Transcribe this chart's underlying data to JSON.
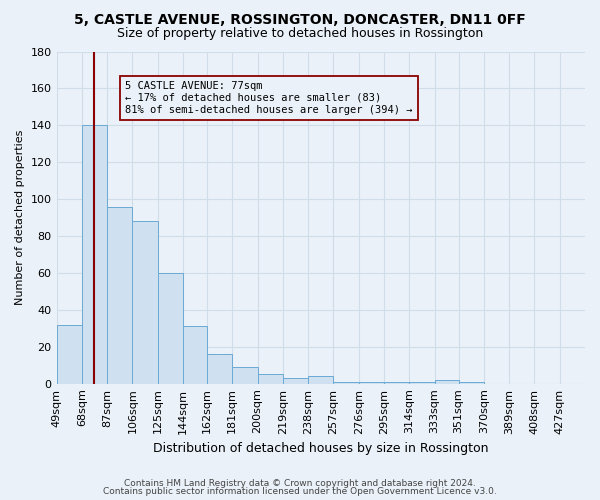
{
  "title": "5, CASTLE AVENUE, ROSSINGTON, DONCASTER, DN11 0FF",
  "subtitle": "Size of property relative to detached houses in Rossington",
  "xlabel": "Distribution of detached houses by size in Rossington",
  "ylabel": "Number of detached properties",
  "bar_values": [
    32,
    140,
    96,
    88,
    60,
    31,
    16,
    9,
    5,
    3,
    4,
    1,
    1,
    1,
    1,
    2,
    1,
    0,
    0,
    0,
    0
  ],
  "categories": [
    "49sqm",
    "68sqm",
    "87sqm",
    "106sqm",
    "125sqm",
    "144sqm",
    "162sqm",
    "181sqm",
    "200sqm",
    "219sqm",
    "238sqm",
    "257sqm",
    "276sqm",
    "295sqm",
    "314sqm",
    "333sqm",
    "351sqm",
    "370sqm",
    "389sqm",
    "408sqm",
    "427sqm"
  ],
  "bar_edges": [
    49,
    68,
    87,
    106,
    125,
    144,
    162,
    181,
    200,
    219,
    238,
    257,
    276,
    295,
    314,
    333,
    351,
    370,
    389,
    408,
    427,
    446
  ],
  "bar_color": "#cfe0f0",
  "bar_edge_color": "#6aaad4",
  "red_line_x": 77,
  "ylim": [
    0,
    180
  ],
  "yticks": [
    0,
    20,
    40,
    60,
    80,
    100,
    120,
    140,
    160,
    180
  ],
  "annotation_title": "5 CASTLE AVENUE: 77sqm",
  "annotation_line1": "← 17% of detached houses are smaller (83)",
  "annotation_line2": "81% of semi-detached houses are larger (394) →",
  "footer1": "Contains HM Land Registry data © Crown copyright and database right 2024.",
  "footer2": "Contains public sector information licensed under the Open Government Licence v3.0.",
  "bg_color": "#eaf1f8",
  "grid_color": "#d0dde8",
  "title_fontsize": 10,
  "subtitle_fontsize": 9,
  "xlabel_fontsize": 9,
  "ylabel_fontsize": 8,
  "tick_fontsize": 8,
  "ann_fontsize": 7.5,
  "footer_fontsize": 6.5
}
